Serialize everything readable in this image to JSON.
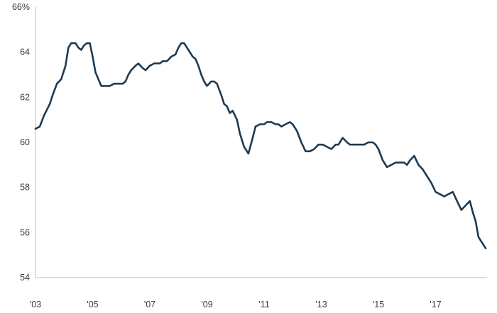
{
  "chart_data": {
    "type": "line",
    "title": "",
    "xlabel": "",
    "ylabel": "",
    "y_unit_suffix": "%",
    "ylim": [
      54,
      66
    ],
    "y_ticks": [
      54,
      56,
      58,
      60,
      62,
      64,
      66
    ],
    "y_tick_labels": [
      "54",
      "56",
      "58",
      "60",
      "62",
      "64",
      "66%"
    ],
    "xlim": [
      2003,
      2018.8
    ],
    "x_ticks": [
      2003,
      2005,
      2007,
      2009,
      2011,
      2013,
      2015,
      2017
    ],
    "x_tick_labels": [
      "'03",
      "'05",
      "'07",
      "'09",
      "'11",
      "'13",
      "'15",
      "'17"
    ],
    "grid": false,
    "legend": "none",
    "series": [
      {
        "color": "#1e3a52",
        "x": [
          2003.0,
          2003.15,
          2003.3,
          2003.5,
          2003.6,
          2003.75,
          2003.9,
          2004.05,
          2004.15,
          2004.25,
          2004.4,
          2004.5,
          2004.6,
          2004.7,
          2004.8,
          2004.9,
          2005.0,
          2005.1,
          2005.2,
          2005.3,
          2005.4,
          2005.5,
          2005.6,
          2005.75,
          2005.9,
          2006.05,
          2006.15,
          2006.25,
          2006.35,
          2006.5,
          2006.6,
          2006.75,
          2006.85,
          2007.0,
          2007.15,
          2007.25,
          2007.35,
          2007.45,
          2007.6,
          2007.75,
          2007.9,
          2008.0,
          2008.1,
          2008.2,
          2008.35,
          2008.5,
          2008.6,
          2008.7,
          2008.8,
          2008.9,
          2009.0,
          2009.15,
          2009.25,
          2009.35,
          2009.5,
          2009.6,
          2009.7,
          2009.8,
          2009.9,
          2010.05,
          2010.15,
          2010.3,
          2010.45,
          2010.6,
          2010.7,
          2010.85,
          2011.0,
          2011.1,
          2011.25,
          2011.4,
          2011.5,
          2011.6,
          2011.75,
          2011.9,
          2012.0,
          2012.15,
          2012.3,
          2012.45,
          2012.6,
          2012.75,
          2012.9,
          2013.05,
          2013.2,
          2013.35,
          2013.5,
          2013.6,
          2013.75,
          2013.9,
          2014.0,
          2014.15,
          2014.3,
          2014.5,
          2014.65,
          2014.8,
          2014.9,
          2015.0,
          2015.15,
          2015.3,
          2015.45,
          2015.6,
          2015.75,
          2015.9,
          2016.0,
          2016.1,
          2016.25,
          2016.4,
          2016.55,
          2016.7,
          2016.85,
          2017.0,
          2017.15,
          2017.3,
          2017.45,
          2017.6,
          2017.75,
          2017.9,
          2018.05,
          2018.2,
          2018.3,
          2018.4,
          2018.5,
          2018.6,
          2018.75
        ],
        "values": [
          60.6,
          60.7,
          61.2,
          61.7,
          62.1,
          62.6,
          62.8,
          63.4,
          64.2,
          64.4,
          64.4,
          64.2,
          64.1,
          64.3,
          64.4,
          64.4,
          63.8,
          63.1,
          62.8,
          62.5,
          62.5,
          62.5,
          62.5,
          62.6,
          62.6,
          62.6,
          62.7,
          63.0,
          63.2,
          63.4,
          63.5,
          63.3,
          63.2,
          63.4,
          63.5,
          63.5,
          63.5,
          63.6,
          63.6,
          63.8,
          63.9,
          64.2,
          64.4,
          64.4,
          64.1,
          63.8,
          63.7,
          63.4,
          63.0,
          62.7,
          62.5,
          62.7,
          62.7,
          62.6,
          62.1,
          61.7,
          61.6,
          61.3,
          61.4,
          61.0,
          60.4,
          59.8,
          59.5,
          60.2,
          60.7,
          60.8,
          60.8,
          60.9,
          60.9,
          60.8,
          60.8,
          60.7,
          60.8,
          60.9,
          60.8,
          60.5,
          60.0,
          59.6,
          59.6,
          59.7,
          59.9,
          59.9,
          59.8,
          59.7,
          59.9,
          59.9,
          60.2,
          60.0,
          59.9,
          59.9,
          59.9,
          59.9,
          60.0,
          60.0,
          59.9,
          59.7,
          59.2,
          58.9,
          59.0,
          59.1,
          59.1,
          59.1,
          59.0,
          59.2,
          59.4,
          59.0,
          58.8,
          58.5,
          58.2,
          57.8,
          57.7,
          57.6,
          57.7,
          57.8,
          57.4,
          57.0,
          57.2,
          57.4,
          56.9,
          56.5,
          55.8,
          55.6,
          55.3
        ]
      }
    ]
  }
}
